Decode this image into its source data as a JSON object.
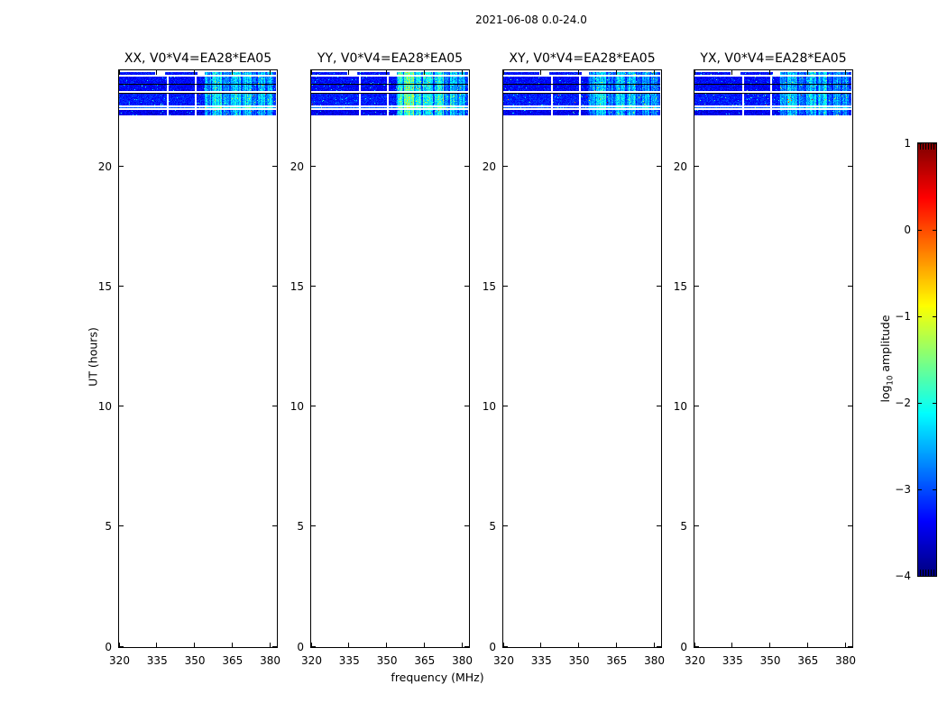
{
  "figure": {
    "title": "2021-06-08 0.0-24.0",
    "background": "#ffffff",
    "foreground": "#000000"
  },
  "chart_data": {
    "type": "heatmap",
    "title": "2021-06-08 0.0-24.0",
    "xlabel": "frequency (MHz)",
    "ylabel": "UT (hours)",
    "xlim": [
      320,
      382.5
    ],
    "ylim": [
      0,
      24
    ],
    "xticks": [
      320,
      335,
      350,
      365,
      380
    ],
    "yticks": [
      0,
      5,
      10,
      15,
      20
    ],
    "xtick_labels": [
      "320",
      "335",
      "350",
      "365",
      "380"
    ],
    "ytick_labels": [
      "0",
      "5",
      "10",
      "15",
      "20"
    ],
    "grid": false,
    "panels": [
      {
        "pol": "XX",
        "title": "XX, V0*V4=EA28*EA05",
        "gain": 1.0
      },
      {
        "pol": "YY",
        "title": "YY, V0*V4=EA28*EA05",
        "gain": 1.15
      },
      {
        "pol": "XY",
        "title": "XY, V0*V4=EA28*EA05",
        "gain": 0.85
      },
      {
        "pol": "YX",
        "title": "YX, V0*V4=EA28*EA05",
        "gain": 0.85
      }
    ],
    "colorbar": {
      "label_prefix": "log",
      "label_sub": "10",
      "label_rest": " amplitude",
      "lim": [
        -4,
        1
      ],
      "ticks": [
        1,
        0,
        -1,
        -2,
        -3,
        -4
      ],
      "tick_labels": [
        "1",
        "0",
        "−1",
        "−2",
        "−3",
        "−4"
      ],
      "colormap": "jet"
    },
    "data_band": {
      "description": "Visibility amplitude dynamic spectrum; data present only near the end of the day, blank (white) elsewhere. Background noise log10 amplitude ~ -3.4 (dark blue); RFI stripes above ~354 MHz reach ~ -2 to -1.5 (cyan/green), strongest in YY.",
      "ut_coverage": [
        22.1,
        24.0
      ],
      "background_log10_amp": -3.4,
      "rows": [
        {
          "type": "noise",
          "h": 3,
          "base": -3.3
        },
        {
          "type": "gap",
          "h": 2
        },
        {
          "type": "noise",
          "h": 8,
          "base": -3.35
        },
        {
          "type": "line",
          "h": 1
        },
        {
          "type": "noise",
          "h": 7,
          "base": -3.4
        },
        {
          "type": "gap",
          "h": 2
        },
        {
          "type": "line",
          "h": 1
        },
        {
          "type": "noise",
          "h": 13,
          "base": -3.25
        },
        {
          "type": "gap",
          "h": 2
        },
        {
          "type": "noise",
          "h": 1,
          "base": -2.9
        },
        {
          "type": "gap",
          "h": 2
        },
        {
          "type": "noise",
          "h": 6,
          "base": -3.45
        }
      ],
      "gap_columns": [
        0.31,
        0.49
      ],
      "top_row_gaps": [
        [
          0.23,
          0.29
        ],
        [
          0.5,
          0.545
        ]
      ],
      "rfi_ambient_start": 0.54,
      "rfi_stripes": [
        [
          0.545,
          0.585,
          0.9
        ],
        [
          0.595,
          0.655,
          1.3
        ],
        [
          0.665,
          0.7,
          0.8
        ],
        [
          0.715,
          0.775,
          1.2
        ],
        [
          0.79,
          0.845,
          1.3
        ],
        [
          0.855,
          0.875,
          0.6
        ],
        [
          0.885,
          0.935,
          1.0
        ],
        [
          0.945,
          0.985,
          0.9
        ]
      ],
      "yy_extra_stripe": [
        0.55,
        0.7,
        0.5
      ]
    }
  }
}
